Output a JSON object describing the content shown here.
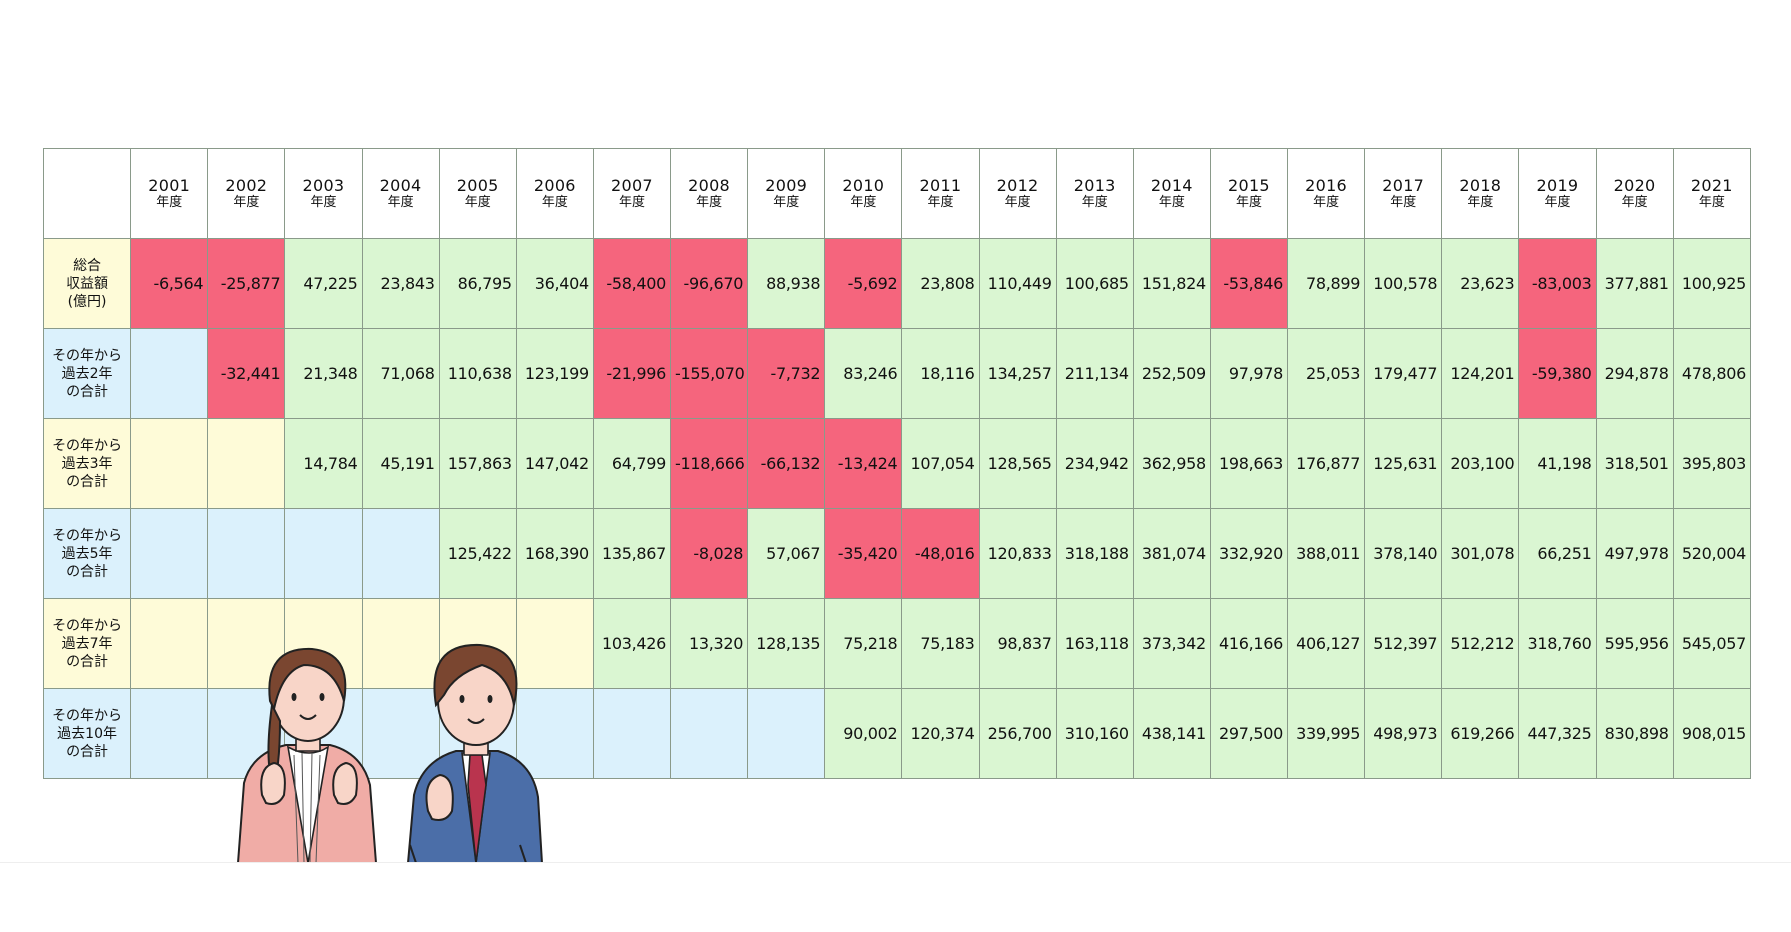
{
  "chart_data": {
    "type": "table",
    "years": [
      "2001",
      "2002",
      "2003",
      "2004",
      "2005",
      "2006",
      "2007",
      "2008",
      "2009",
      "2010",
      "2011",
      "2012",
      "2013",
      "2014",
      "2015",
      "2016",
      "2017",
      "2018",
      "2019",
      "2020",
      "2021"
    ],
    "year_suffix": "年度",
    "rows": [
      {
        "label_lines": [
          "総合",
          "収益額",
          "(億円)"
        ],
        "header_bg": "#fefbd8",
        "empty_bg": "#fefbd8",
        "values": [
          "-6,564",
          "-25,877",
          "47,225",
          "23,843",
          "86,795",
          "36,404",
          "-58,400",
          "-96,670",
          "88,938",
          "-5,692",
          "23,808",
          "110,449",
          "100,685",
          "151,824",
          "-53,846",
          "78,899",
          "100,578",
          "23,623",
          "-83,003",
          "377,881",
          "100,925"
        ]
      },
      {
        "label_lines": [
          "その年から",
          "過去2年",
          "の合計"
        ],
        "header_bg": "#dbf1fc",
        "empty_bg": "#dbf1fc",
        "values": [
          null,
          "-32,441",
          "21,348",
          "71,068",
          "110,638",
          "123,199",
          "-21,996",
          "-155,070",
          "-7,732",
          "83,246",
          "18,116",
          "134,257",
          "211,134",
          "252,509",
          "97,978",
          "25,053",
          "179,477",
          "124,201",
          "-59,380",
          "294,878",
          "478,806"
        ]
      },
      {
        "label_lines": [
          "その年から",
          "過去3年",
          "の合計"
        ],
        "header_bg": "#fefbd8",
        "empty_bg": "#fefbd8",
        "values": [
          null,
          null,
          "14,784",
          "45,191",
          "157,863",
          "147,042",
          "64,799",
          "-118,666",
          "-66,132",
          "-13,424",
          "107,054",
          "128,565",
          "234,942",
          "362,958",
          "198,663",
          "176,877",
          "125,631",
          "203,100",
          "41,198",
          "318,501",
          "395,803"
        ]
      },
      {
        "label_lines": [
          "その年から",
          "過去5年",
          "の合計"
        ],
        "header_bg": "#dbf1fc",
        "empty_bg": "#dbf1fc",
        "values": [
          null,
          null,
          null,
          null,
          "125,422",
          "168,390",
          "135,867",
          "-8,028",
          "57,067",
          "-35,420",
          "-48,016",
          "120,833",
          "318,188",
          "381,074",
          "332,920",
          "388,011",
          "378,140",
          "301,078",
          "66,251",
          "497,978",
          "520,004"
        ]
      },
      {
        "label_lines": [
          "その年から",
          "過去7年",
          "の合計"
        ],
        "header_bg": "#fefbd8",
        "empty_bg": "#fefbd8",
        "values": [
          null,
          null,
          null,
          null,
          null,
          null,
          "103,426",
          "13,320",
          "128,135",
          "75,218",
          "75,183",
          "98,837",
          "163,118",
          "373,342",
          "416,166",
          "406,127",
          "512,397",
          "512,212",
          "318,760",
          "595,956",
          "545,057"
        ]
      },
      {
        "label_lines": [
          "その年から",
          "過去10年",
          "の合計"
        ],
        "header_bg": "#dbf1fc",
        "empty_bg": "#dbf1fc",
        "values": [
          null,
          null,
          null,
          null,
          null,
          null,
          null,
          null,
          null,
          "90,002",
          "120,374",
          "256,700",
          "310,160",
          "438,141",
          "297,500",
          "339,995",
          "498,973",
          "619,266",
          "447,325",
          "830,898",
          "908,015"
        ]
      }
    ]
  },
  "colors": {
    "positive_cell": "#daf6d2",
    "negative_cell": "#f5657d",
    "yellow_cell": "#fefbd8",
    "blue_cell": "#dbf1fc",
    "grid_line": "#8a9a8a",
    "woman_jacket": "#f0aca6",
    "man_suit": "#4b6ea8",
    "tie": "#b9344e",
    "hair": "#7a4630"
  },
  "illustration": {
    "description_name": "cheering-business-people"
  }
}
